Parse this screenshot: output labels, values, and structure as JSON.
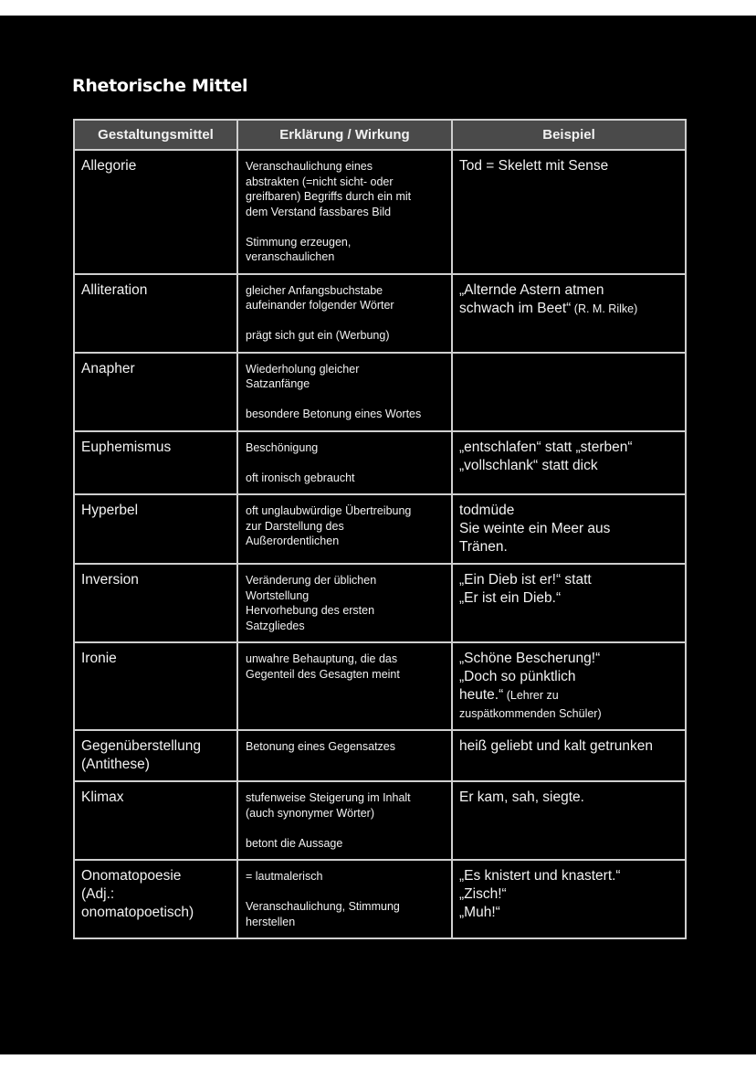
{
  "title": "Rhetorische Mittel",
  "table": {
    "headers": [
      "Gestaltungsmittel",
      "Erklärung / Wirkung",
      "Beispiel"
    ],
    "rows": [
      {
        "term": "Allegorie",
        "explanation": "Veranschaulichung eines\nabstrakten (=nicht sicht- oder\ngreifbaren) Begriffs durch ein mit\ndem Verstand fassbares Bild\n\nStimmung erzeugen,\nveranschaulichen",
        "example": "Tod = Skelett mit Sense",
        "note": ""
      },
      {
        "term": "Alliteration",
        "explanation": "gleicher Anfangsbuchstabe\naufeinander folgender Wörter\n\nprägt sich gut ein (Werbung)",
        "example": "„Alternde Astern atmen\nschwach im Beet“",
        "note": " (R. M. Rilke)"
      },
      {
        "term": "Anapher",
        "explanation": "Wiederholung gleicher\nSatzanfänge\n\nbesondere Betonung eines Wortes",
        "example": "",
        "note": ""
      },
      {
        "term": "Euphemismus",
        "explanation": "Beschönigung\n\noft ironisch gebraucht",
        "example": "„entschlafen“ statt „sterben“\n„vollschlank“ statt dick",
        "note": ""
      },
      {
        "term": "Hyperbel",
        "explanation": "oft unglaubwürdige Übertreibung\nzur Darstellung des\nAußerordentlichen",
        "example": "todmüde\nSie weinte ein Meer aus\nTränen.",
        "note": ""
      },
      {
        "term": "Inversion",
        "explanation": "Veränderung der üblichen\nWortstellung\nHervorhebung des ersten\nSatzgliedes",
        "example": "„Ein Dieb ist er!“ statt\n„Er ist ein Dieb.“",
        "note": ""
      },
      {
        "term": "Ironie",
        "explanation": "unwahre Behauptung, die das\nGegenteil des Gesagten meint",
        "example": "„Schöne Bescherung!“\n„Doch so pünktlich\nheute.“",
        "note": " (Lehrer zu\nzuspätkommenden Schüler)"
      },
      {
        "term": "Gegenüberstellung\n(Antithese)",
        "explanation": "Betonung eines Gegensatzes",
        "example": "heiß geliebt und kalt getrunken",
        "note": ""
      },
      {
        "term": "Klimax",
        "explanation": "stufenweise Steigerung im Inhalt\n(auch synonymer Wörter)\n\nbetont die Aussage",
        "example": "Er kam, sah, siegte.",
        "note": ""
      },
      {
        "term": "Onomatopoesie\n(Adj.:\nonomatopoetisch)",
        "explanation": " = lautmalerisch\n\nVeranschaulichung, Stimmung\nherstellen",
        "example": "„Es knistert und knastert.“\n„Zisch!“\n„Muh!“",
        "note": ""
      }
    ]
  }
}
